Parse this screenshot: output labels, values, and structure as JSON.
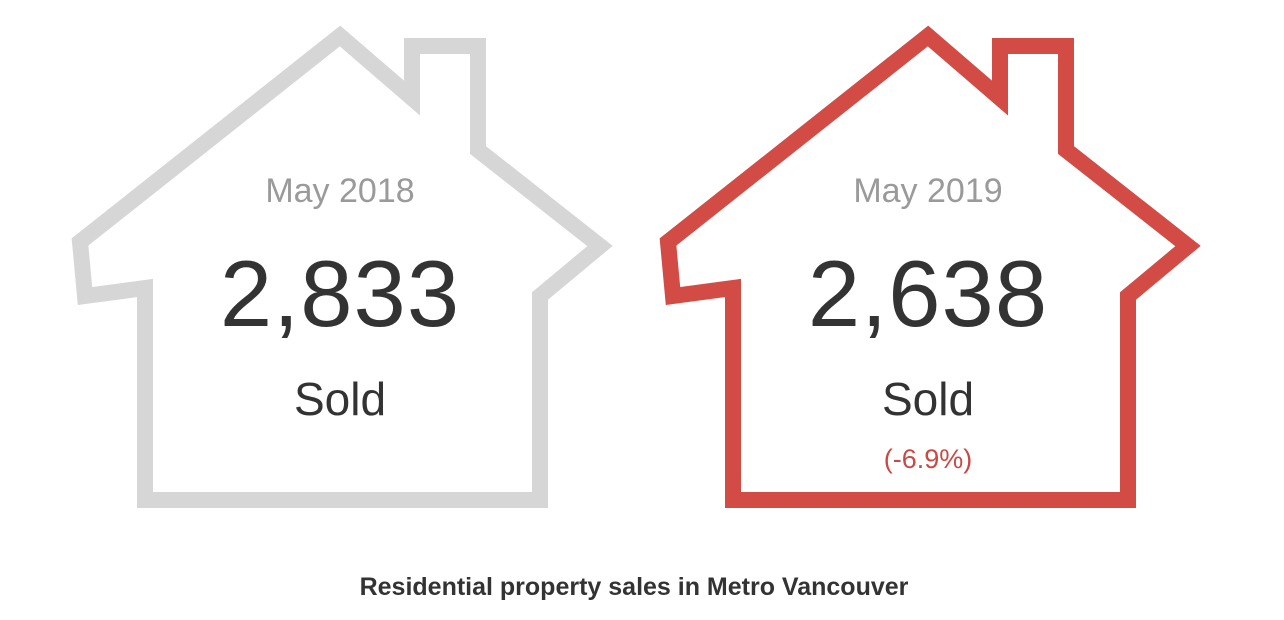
{
  "houses": [
    {
      "period": "May 2018",
      "count": "2,833",
      "label": "Sold",
      "change": ""
    },
    {
      "period": "May 2019",
      "count": "2,638",
      "label": "Sold",
      "change": "(-6.9%)"
    }
  ],
  "colors": {
    "previous_outline": "#d6d6d6",
    "current_outline": "#d34b45",
    "change_text": "#c94a45"
  },
  "caption": "Residential property sales in Metro Vancouver"
}
